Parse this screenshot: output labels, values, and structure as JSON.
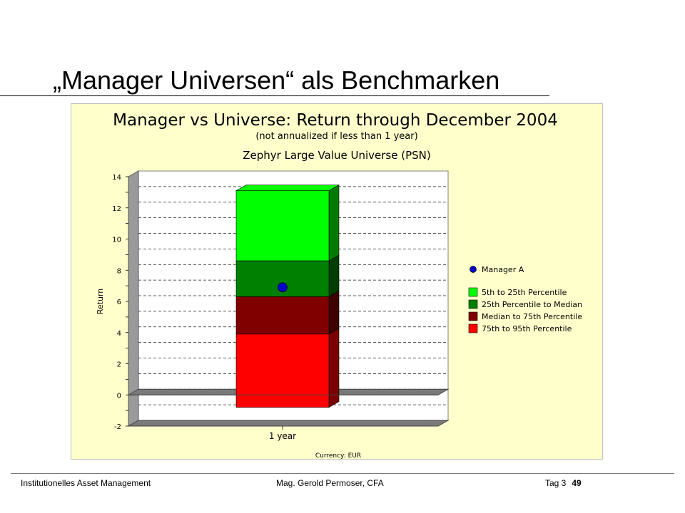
{
  "slide": {
    "title": "„Manager Universen“ als Benchmarken"
  },
  "footer": {
    "left": "Institutionelles Asset Management",
    "center": "Mag. Gerold Permoser, CFA",
    "day": "Tag 3",
    "page": "49"
  },
  "chart_data": {
    "type": "bar",
    "title": "Manager vs Universe: Return through December 2004",
    "subtitle": "(not annualized if less than 1 year)",
    "universe": "Zephyr Large Value Universe (PSN)",
    "xlabel": "",
    "ylabel": "Return",
    "currency_note": "Currency: EUR",
    "categories": [
      "1 year"
    ],
    "ylim": [
      -2,
      14
    ],
    "yticks": [
      -2,
      0,
      2,
      4,
      6,
      8,
      10,
      12,
      14
    ],
    "grid": true,
    "legend_position": "right",
    "series": [
      {
        "name": "5th to 25th Percentile",
        "low": 8.6,
        "high": 13.1,
        "color": "#00ff00",
        "side_color": "#007a00"
      },
      {
        "name": "25th Percentile to Median",
        "low": 6.3,
        "high": 8.6,
        "color": "#008000",
        "side_color": "#003e00"
      },
      {
        "name": "Median to 75th Percentile",
        "low": 3.9,
        "high": 6.3,
        "color": "#800000",
        "side_color": "#3e0000"
      },
      {
        "name": "75th to 95th Percentile",
        "low": -0.8,
        "high": 3.9,
        "color": "#ff0000",
        "side_color": "#7a0000"
      }
    ],
    "points": [
      {
        "name": "Manager A",
        "category": "1 year",
        "value": 6.9,
        "color": "#0000cc"
      }
    ]
  }
}
